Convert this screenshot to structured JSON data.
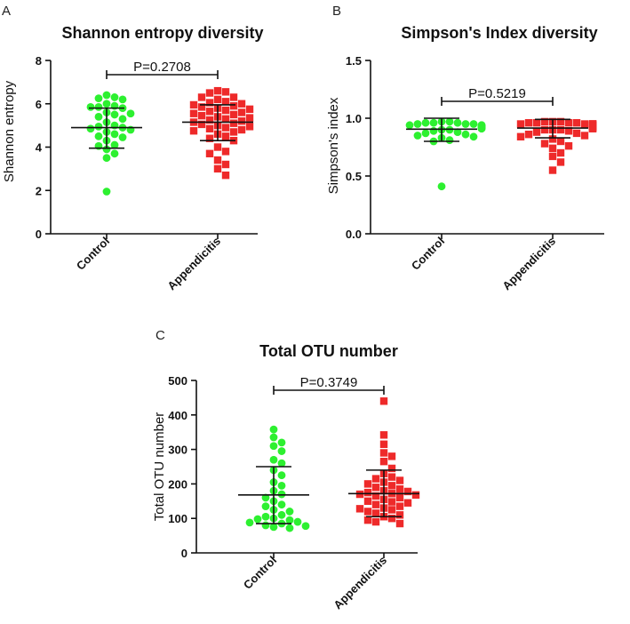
{
  "colors": {
    "control": "#2df030",
    "appendicitis": "#ee2a2a",
    "axis": "#111111"
  },
  "chart_data": [
    {
      "id": "A",
      "panel_label": "A",
      "type": "scatter",
      "title": "Shannon entropy diversity",
      "ylabel": "Shannon entropy",
      "ylim": [
        0,
        8
      ],
      "yticks": [
        "0",
        "2",
        "4",
        "6",
        "8"
      ],
      "ytick_values": [
        0,
        2,
        4,
        6,
        8
      ],
      "categories": [
        "Control",
        "Appendicitis"
      ],
      "p_value": "P=0.2708",
      "series": [
        {
          "name": "Control",
          "marker": "circle",
          "mean": 4.9,
          "sd_low": 3.95,
          "sd_high": 5.8,
          "values": [
            6.3,
            6.4,
            6.2,
            6.25,
            6.0,
            5.85,
            5.9,
            5.8,
            5.85,
            5.6,
            5.55,
            5.5,
            5.4,
            5.3,
            5.15,
            5.0,
            4.95,
            4.9,
            4.85,
            4.8,
            4.7,
            4.6,
            4.5,
            4.45,
            4.3,
            4.1,
            4.05,
            3.9,
            3.7,
            3.5,
            1.95
          ]
        },
        {
          "name": "Appendicitis",
          "marker": "square",
          "mean": 5.15,
          "sd_low": 4.3,
          "sd_high": 5.95,
          "values": [
            6.55,
            6.6,
            6.5,
            6.3,
            6.3,
            6.2,
            6.1,
            6.05,
            6.0,
            5.95,
            5.9,
            5.85,
            5.8,
            5.75,
            5.7,
            5.65,
            5.6,
            5.55,
            5.5,
            5.45,
            5.4,
            5.35,
            5.3,
            5.25,
            5.2,
            5.15,
            5.1,
            5.05,
            5.0,
            4.95,
            4.9,
            4.85,
            4.8,
            4.75,
            4.7,
            4.6,
            4.5,
            4.4,
            4.3,
            4.0,
            3.8,
            3.7,
            3.4,
            3.2,
            3.0,
            2.7
          ]
        }
      ]
    },
    {
      "id": "B",
      "panel_label": "B",
      "type": "scatter",
      "title": "Simpson's Index diversity",
      "ylabel": "Simpson's index",
      "ylim": [
        0,
        1.5
      ],
      "yticks": [
        "0.0",
        "0.5",
        "1.0",
        "1.5"
      ],
      "ytick_values": [
        0,
        0.5,
        1.0,
        1.5
      ],
      "categories": [
        "Control",
        "Appendicitis"
      ],
      "p_value": "P=0.5219",
      "series": [
        {
          "name": "Control",
          "marker": "circle",
          "mean": 0.905,
          "sd_low": 0.8,
          "sd_high": 1.0,
          "values": [
            0.97,
            0.97,
            0.96,
            0.96,
            0.96,
            0.95,
            0.95,
            0.95,
            0.94,
            0.94,
            0.94,
            0.93,
            0.93,
            0.93,
            0.92,
            0.92,
            0.92,
            0.91,
            0.91,
            0.9,
            0.9,
            0.89,
            0.88,
            0.87,
            0.86,
            0.85,
            0.84,
            0.83,
            0.81,
            0.8,
            0.41
          ]
        },
        {
          "name": "Appendicitis",
          "marker": "square",
          "mean": 0.915,
          "sd_low": 0.83,
          "sd_high": 0.99,
          "values": [
            0.97,
            0.97,
            0.97,
            0.96,
            0.96,
            0.96,
            0.96,
            0.95,
            0.95,
            0.95,
            0.95,
            0.95,
            0.94,
            0.94,
            0.94,
            0.94,
            0.93,
            0.93,
            0.93,
            0.93,
            0.92,
            0.92,
            0.92,
            0.91,
            0.91,
            0.9,
            0.9,
            0.9,
            0.89,
            0.88,
            0.87,
            0.86,
            0.85,
            0.84,
            0.82,
            0.8,
            0.78,
            0.76,
            0.74,
            0.7,
            0.67,
            0.62,
            0.55
          ]
        }
      ]
    },
    {
      "id": "C",
      "panel_label": "C",
      "type": "scatter",
      "title": "Total OTU number",
      "ylabel": "Total OTU number",
      "ylim": [
        0,
        500
      ],
      "yticks": [
        "0",
        "100",
        "200",
        "300",
        "400",
        "500"
      ],
      "ytick_values": [
        0,
        100,
        200,
        300,
        400,
        500
      ],
      "categories": [
        "Control",
        "Appendicitis"
      ],
      "p_value": "P=0.3749",
      "series": [
        {
          "name": "Control",
          "marker": "circle",
          "mean": 168,
          "sd_low": 85,
          "sd_high": 250,
          "values": [
            358,
            335,
            320,
            310,
            295,
            270,
            260,
            240,
            225,
            205,
            195,
            180,
            170,
            160,
            150,
            140,
            135,
            125,
            120,
            110,
            105,
            100,
            98,
            95,
            90,
            88,
            85,
            80,
            78,
            75,
            72
          ]
        },
        {
          "name": "Appendicitis",
          "marker": "square",
          "mean": 172,
          "sd_low": 105,
          "sd_high": 240,
          "values": [
            440,
            342,
            315,
            290,
            280,
            265,
            245,
            230,
            220,
            215,
            210,
            205,
            200,
            195,
            190,
            185,
            180,
            178,
            175,
            172,
            170,
            168,
            165,
            160,
            155,
            150,
            148,
            145,
            140,
            135,
            130,
            128,
            125,
            120,
            115,
            110,
            105,
            100,
            95,
            90,
            85
          ]
        }
      ]
    }
  ]
}
